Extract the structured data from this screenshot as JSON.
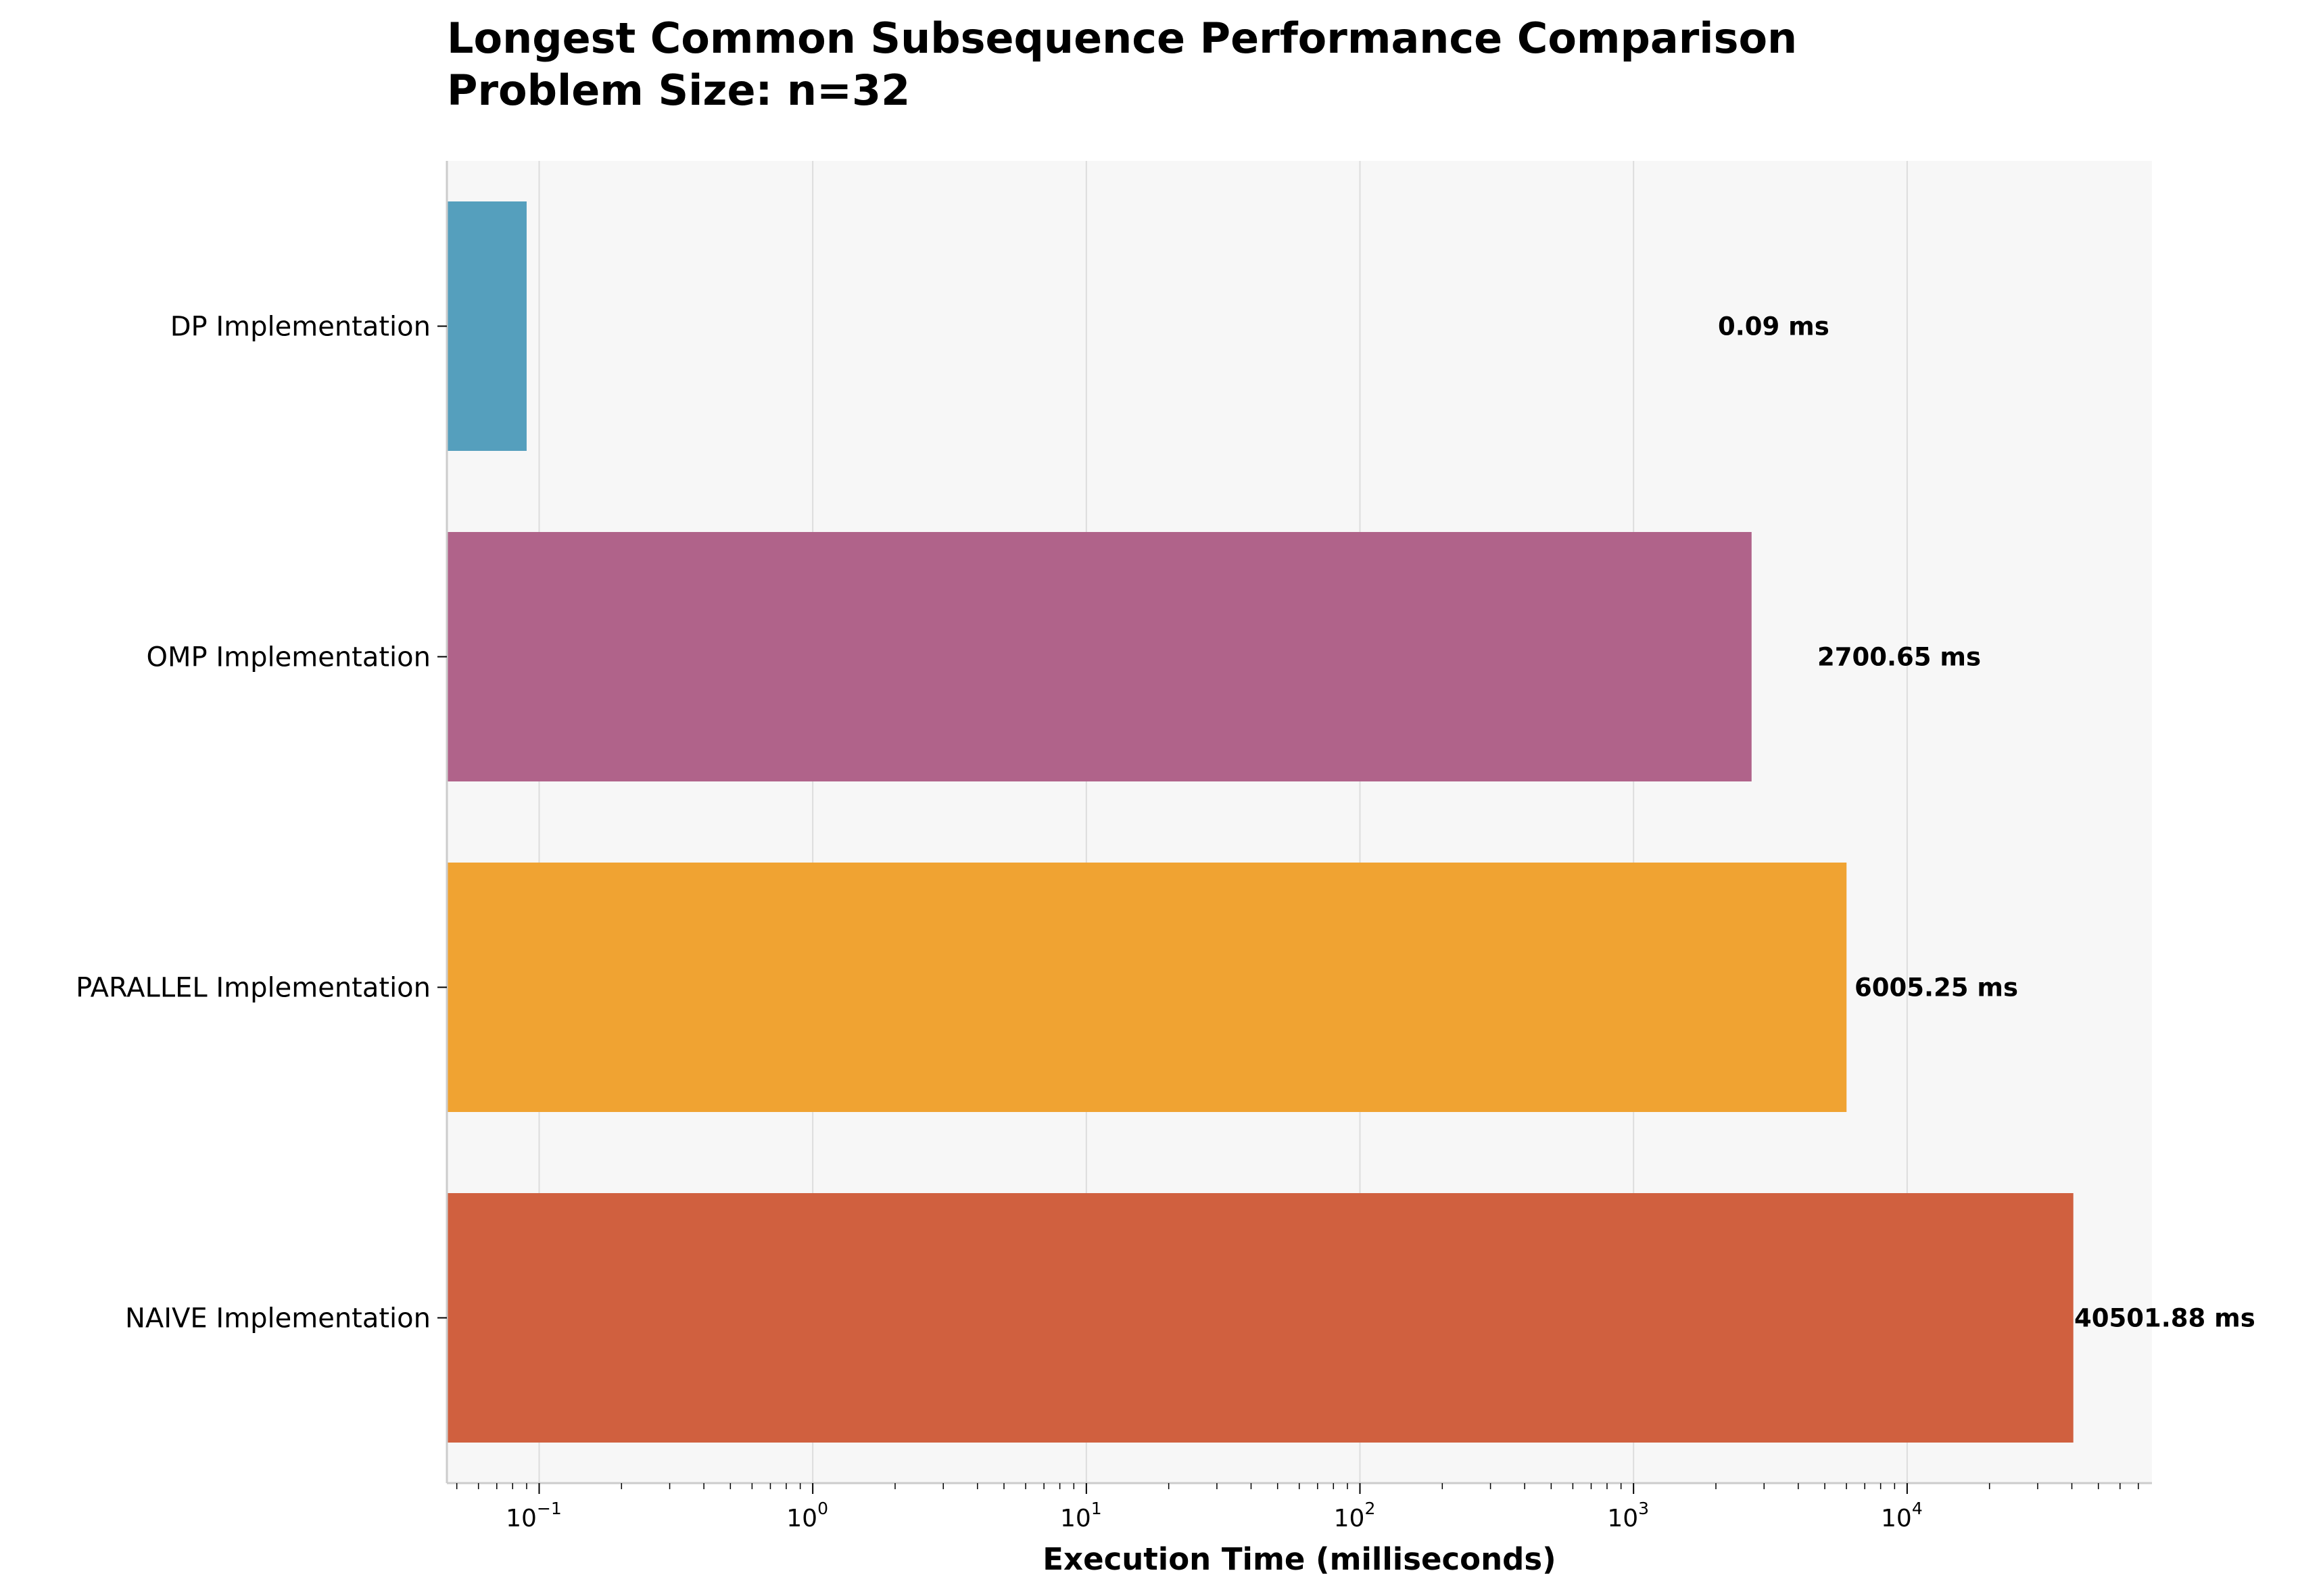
{
  "chart_data": {
    "type": "bar",
    "orientation": "horizontal",
    "title": "Longest Common Subsequence Performance Comparison",
    "subtitle": "Problem Size: n=32",
    "xlabel": "Execution Time (milliseconds)",
    "ylabel": "",
    "xscale": "log",
    "xlim": [
      0.046,
      78500
    ],
    "grid": true,
    "categories": [
      "DP Implementation",
      "OMP Implementation",
      "PARALLEL Implementation",
      "NAIVE Implementation"
    ],
    "values": [
      0.09,
      2700.65,
      6005.25,
      40501.88
    ],
    "data_labels": [
      "0.09 ms",
      "2700.65 ms",
      "6005.25 ms",
      "40501.88 ms"
    ],
    "colors": [
      "#559fbd",
      "#b0638a",
      "#f0a332",
      "#d0603f"
    ],
    "x_ticks": [
      {
        "value": 0.1,
        "base": "10",
        "exp": "−1"
      },
      {
        "value": 1,
        "base": "10",
        "exp": "0"
      },
      {
        "value": 10,
        "base": "10",
        "exp": "1"
      },
      {
        "value": 100,
        "base": "10",
        "exp": "2"
      },
      {
        "value": 1000,
        "base": "10",
        "exp": "3"
      },
      {
        "value": 10000,
        "base": "10",
        "exp": "4"
      }
    ],
    "background": "#f7f7f7"
  }
}
